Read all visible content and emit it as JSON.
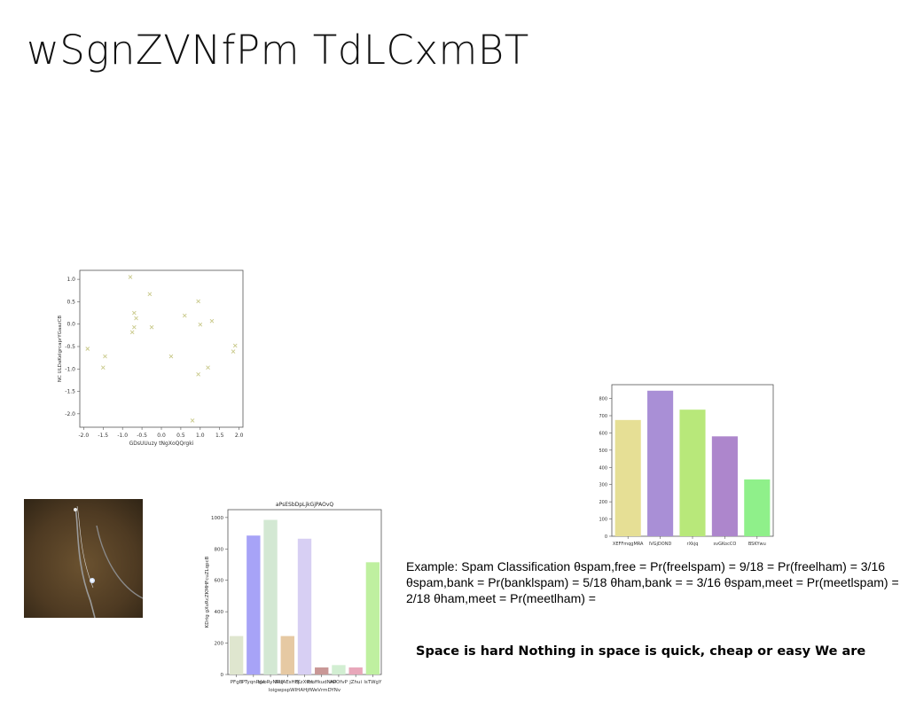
{
  "slide": {
    "title": "wSgnZVNfPm TdLCxmBT",
    "example_text": "Example: Spam Classification θspam,free = Pr(freelspam) = 9/18 = Pr(freelham) = 3/16 θspam,bank = Pr(banklspam) = 5/18 θham,bank = = 3/16 θspam,meet = Pr(meetlspam) = 2/18 θham,meet = Pr(meetlham) =",
    "bold_text": "Space is hard Nothing in space is quick, cheap or easy We are"
  },
  "chart_data": [
    {
      "type": "scatter",
      "title": "",
      "xlabel": "GDsUUuzy tNgXoQQrgki",
      "ylabel": "NC ULDaKelgrcaprYGaazCB",
      "xlim": [
        -2.1,
        2.1
      ],
      "ylim": [
        -2.3,
        1.2
      ],
      "xticks": [
        -2.0,
        -1.5,
        -1.0,
        -0.5,
        0.0,
        0.5,
        1.0,
        1.5,
        2.0
      ],
      "yticks": [
        1.0,
        0.5,
        0.0,
        -0.5,
        -1.0,
        -1.5,
        -2.0
      ],
      "marker": "x",
      "color": "#c9c98a",
      "x": [
        -1.9,
        -1.5,
        -1.45,
        -0.8,
        -0.75,
        -0.7,
        -0.7,
        -0.65,
        -0.3,
        -0.25,
        0.25,
        0.6,
        0.8,
        0.95,
        0.95,
        1.0,
        1.2,
        1.3,
        1.85,
        1.9
      ],
      "y": [
        -0.55,
        -0.97,
        -0.72,
        1.05,
        -0.18,
        0.25,
        -0.07,
        0.13,
        0.67,
        -0.07,
        -0.72,
        0.19,
        -2.15,
        0.51,
        -1.12,
        -0.01,
        -0.97,
        0.07,
        -0.61,
        -0.48
      ]
    },
    {
      "type": "bar",
      "title": "",
      "xlabel": "",
      "ylabel": "",
      "ylim": [
        0,
        880
      ],
      "yticks": [
        0,
        100,
        200,
        300,
        400,
        500,
        600,
        700,
        800
      ],
      "categories": [
        "XEFFmqgMRA",
        "lVGjDOND",
        "rXkjq",
        "svGKocCO",
        "BSKYwu"
      ],
      "values": [
        675,
        845,
        735,
        580,
        330
      ],
      "colors": [
        "#e6df95",
        "#a98fd6",
        "#b8e87a",
        "#ad86cc",
        "#8ff08a"
      ]
    },
    {
      "type": "bar",
      "title": "aPsESbDpLjkGjPAOvQ",
      "xlabel": "loigwpspWIHAHjfWeVrmDYNv",
      "ylabel": "KDrig gXvRcZKMHFcuZLqpcB",
      "ylim": [
        0,
        1050
      ],
      "yticks": [
        0,
        200,
        400,
        600,
        800,
        1000
      ],
      "categories": [
        "PFgB",
        "PTyqnPge",
        "bVoRyNPLJ",
        "NdAEsHEj",
        "tKzXtbL",
        "PmffkudNrO",
        "APOfvP",
        "jZhui",
        "lsTWgY"
      ],
      "values": [
        245,
        885,
        985,
        245,
        865,
        45,
        60,
        45,
        715
      ],
      "colors": [
        "#dfe6cf",
        "#a7a3f7",
        "#d3e8d3",
        "#e6c9a3",
        "#d7cff3",
        "#c99796",
        "#d2eed2",
        "#e8a7ba",
        "#bff0a0"
      ]
    }
  ]
}
